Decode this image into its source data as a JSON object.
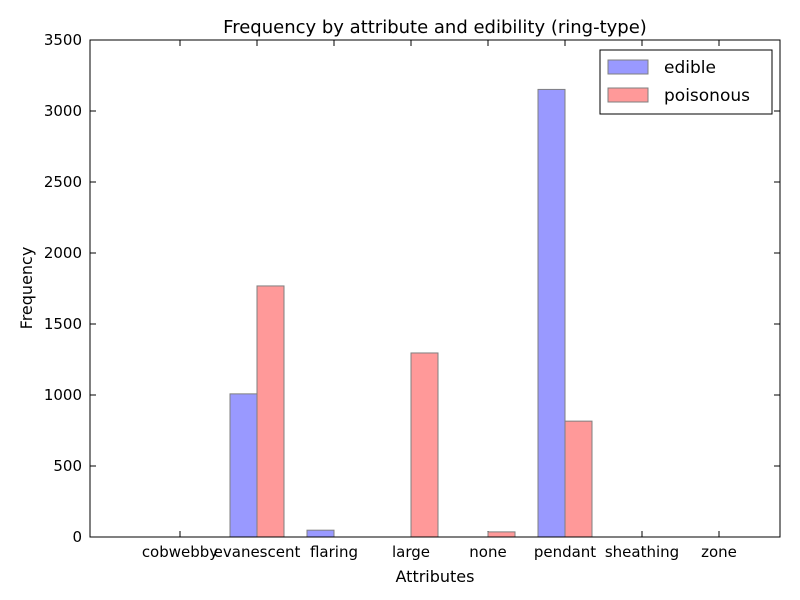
{
  "chart_data": {
    "type": "bar",
    "title": "Frequency by attribute and edibility (ring-type)",
    "xlabel": "Attributes",
    "ylabel": "Frequency",
    "ylim": [
      0,
      3500
    ],
    "yticks": [
      0,
      500,
      1000,
      1500,
      2000,
      2500,
      3000,
      3500
    ],
    "categories": [
      "cobwebby",
      "evanescent",
      "flaring",
      "large",
      "none",
      "pendant",
      "sheathing",
      "zone"
    ],
    "series": [
      {
        "name": "edible",
        "color": "#9999ff",
        "values": [
          0,
          1008,
          48,
          0,
          0,
          3152,
          0,
          0
        ]
      },
      {
        "name": "poisonous",
        "color": "#ff9999",
        "values": [
          0,
          1768,
          0,
          1296,
          36,
          816,
          0,
          0
        ]
      }
    ],
    "legend_position": "top-right",
    "grid": false
  }
}
